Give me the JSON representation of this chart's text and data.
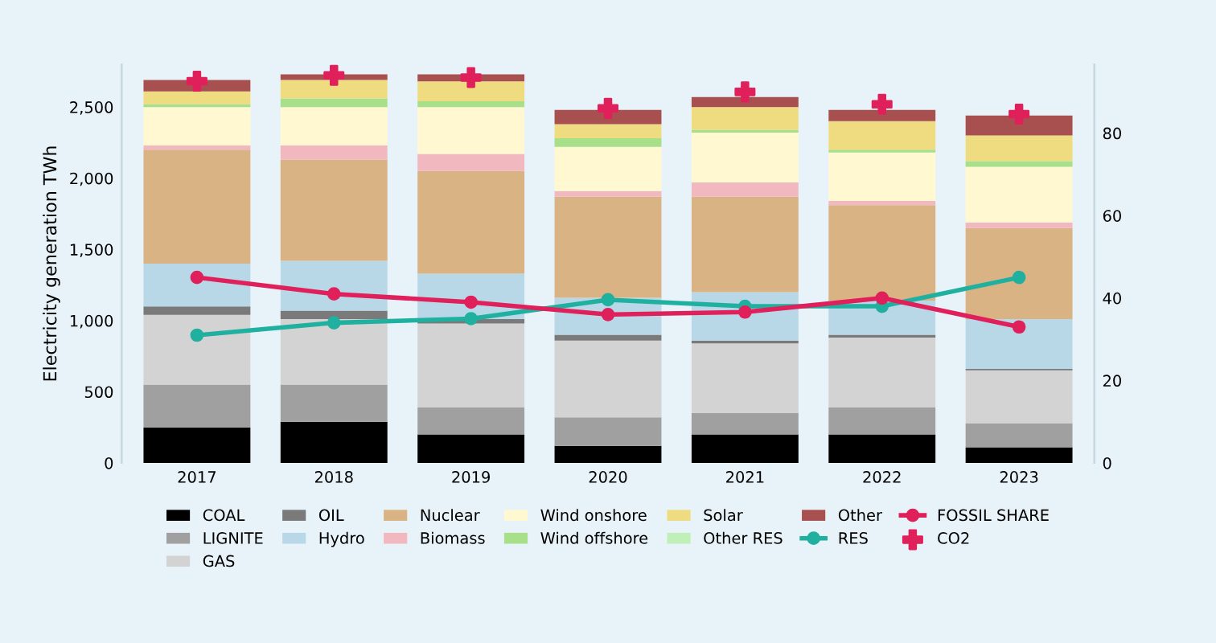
{
  "chart_data": {
    "type": "bar",
    "stacked": true,
    "ylabel": "Electricity generation TWh",
    "categories": [
      "2017",
      "2018",
      "2019",
      "2020",
      "2021",
      "2022",
      "2023"
    ],
    "ylim": [
      0,
      2800
    ],
    "yticks": [
      0,
      500,
      {
        "value": 1000,
        "label": "1,000"
      },
      {
        "value": 1500,
        "label": "1,500"
      },
      {
        "value": 2000,
        "label": "2,000"
      },
      {
        "value": 2500,
        "label": "2,500"
      }
    ],
    "y2lim": [
      0,
      96.7
    ],
    "y2ticks": [
      0,
      20,
      40,
      60,
      80
    ],
    "legend": "bottom",
    "grid": false,
    "series": [
      {
        "name": "COAL",
        "color": "#000000",
        "values": [
          250,
          290,
          200,
          120,
          200,
          200,
          110
        ]
      },
      {
        "name": "LIGNITE",
        "color": "#a0a0a0",
        "values": [
          300,
          260,
          190,
          200,
          150,
          190,
          170
        ]
      },
      {
        "name": "GAS",
        "color": "#d3d3d3",
        "values": [
          490,
          460,
          590,
          540,
          490,
          490,
          370
        ]
      },
      {
        "name": "OIL",
        "color": "#7a7a7a",
        "values": [
          60,
          60,
          30,
          40,
          20,
          20,
          10
        ]
      },
      {
        "name": "Hydro",
        "color": "#b8d8e8",
        "values": [
          300,
          350,
          320,
          260,
          340,
          240,
          350
        ]
      },
      {
        "name": "Nuclear",
        "color": "#d9b383",
        "values": [
          800,
          710,
          720,
          710,
          670,
          670,
          640
        ]
      },
      {
        "name": "Biomass",
        "color": "#f2b8c0",
        "values": [
          30,
          100,
          120,
          40,
          100,
          30,
          40
        ]
      },
      {
        "name": "Wind onshore",
        "color": "#fff8d0",
        "values": [
          270,
          270,
          330,
          310,
          350,
          340,
          390
        ]
      },
      {
        "name": "Wind offshore",
        "color": "#a8e08a",
        "values": [
          20,
          60,
          40,
          60,
          20,
          20,
          40
        ]
      },
      {
        "name": "Solar",
        "color": "#f0dc80",
        "values": [
          90,
          130,
          140,
          100,
          160,
          200,
          180
        ]
      },
      {
        "name": "Other RES",
        "color": "#c0f0b8",
        "values": [
          null,
          null,
          null,
          null,
          null,
          null,
          null
        ]
      },
      {
        "name": "Other",
        "color": "#a85050",
        "values": [
          80,
          40,
          50,
          100,
          70,
          80,
          140
        ]
      },
      {
        "name": "RES",
        "type": "line",
        "axis": "y2",
        "color": "#20b0a0",
        "marker": "circle",
        "values": [
          31,
          34,
          35,
          39.6,
          38,
          38,
          45
        ]
      },
      {
        "name": "FOSSIL SHARE",
        "type": "line",
        "axis": "y2",
        "color": "#e0205a",
        "marker": "circle",
        "values": [
          45,
          41,
          39,
          36,
          36.6,
          40,
          33
        ]
      },
      {
        "name": "CO2",
        "type": "scatter",
        "axis": "y2",
        "color": "#e0205a",
        "marker": "cross",
        "values": [
          92.6,
          94,
          93.5,
          86,
          90,
          87,
          84.6
        ]
      }
    ]
  }
}
